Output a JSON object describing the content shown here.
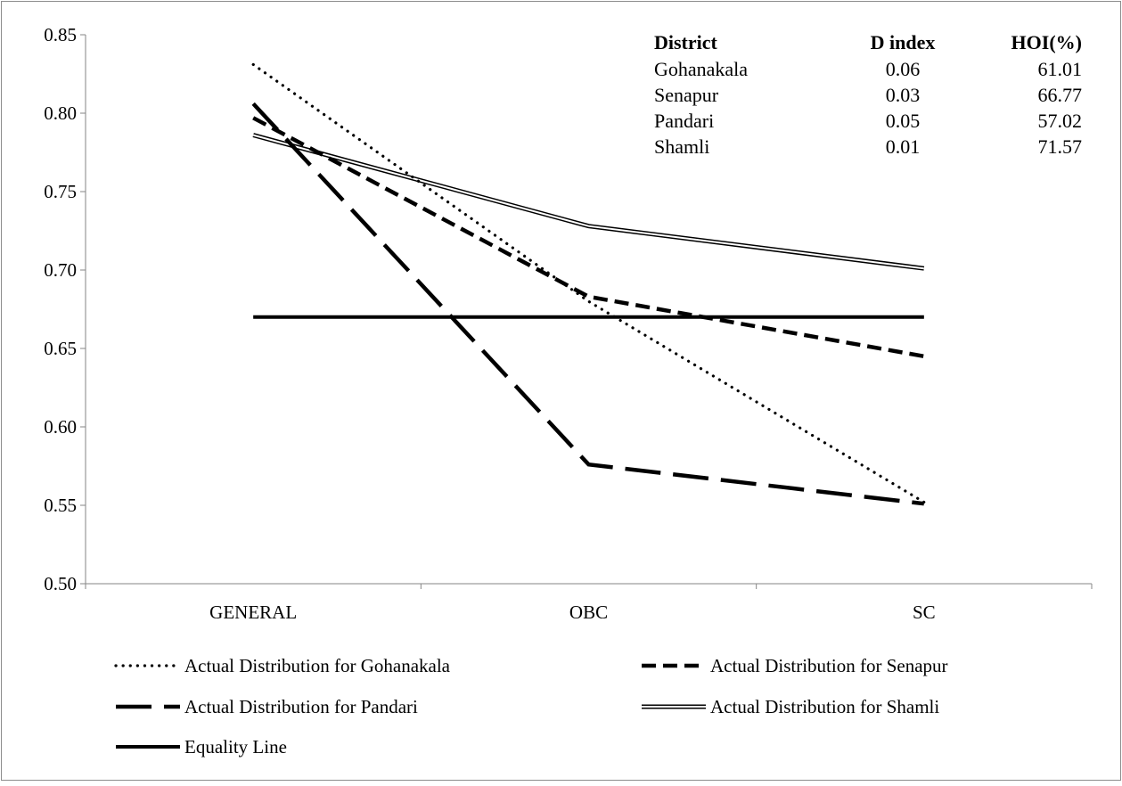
{
  "chart_data": {
    "type": "line",
    "categories": [
      "GENERAL",
      "OBC",
      "SC"
    ],
    "ylim": [
      0.5,
      0.85
    ],
    "yticks": [
      "0.50",
      "0.55",
      "0.60",
      "0.65",
      "0.70",
      "0.75",
      "0.80",
      "0.85"
    ],
    "grid": false,
    "legend_placement": "bottom",
    "series": [
      {
        "name": "Actual Distribution for Gohanakala",
        "style": "dotted",
        "values": [
          0.831,
          0.68,
          0.552
        ]
      },
      {
        "name": "Actual Distribution for Senapur",
        "style": "dashed",
        "values": [
          0.797,
          0.683,
          0.645
        ]
      },
      {
        "name": "Actual Distribution for Pandari",
        "style": "long-dash",
        "values": [
          0.806,
          0.576,
          0.551
        ]
      },
      {
        "name": "Actual Distribution for Shamli",
        "style": "double",
        "values": [
          0.786,
          0.728,
          0.701
        ]
      },
      {
        "name": "Equality Line",
        "style": "solid-thick",
        "values": [
          0.67,
          0.67,
          0.67
        ]
      }
    ],
    "inset_table": {
      "headers": [
        "District",
        "D index",
        "HOI(%)"
      ],
      "rows": [
        [
          "Gohanakala",
          "0.06",
          "61.01"
        ],
        [
          "Senapur",
          "0.03",
          "66.77"
        ],
        [
          "Pandari",
          "0.05",
          "57.02"
        ],
        [
          "Shamli",
          "0.01",
          "71.57"
        ]
      ]
    }
  }
}
